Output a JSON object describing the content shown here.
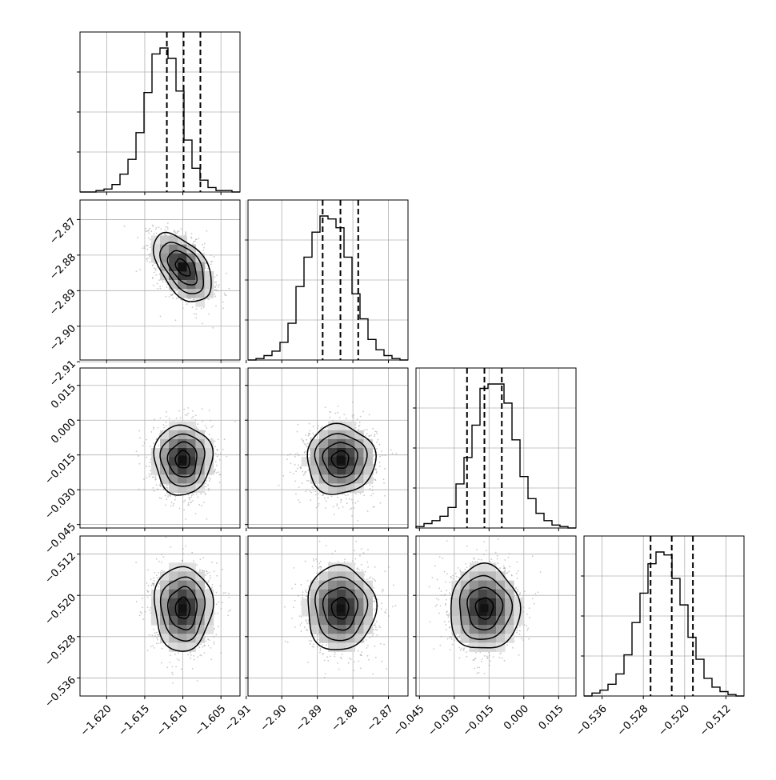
{
  "chart_data": {
    "type": "corner",
    "params": [
      {
        "range": [
          -1.6235,
          -1.6025
        ],
        "ticks": [
          -1.62,
          -1.615,
          -1.61,
          -1.605
        ],
        "tick_labels": [
          "−1.620",
          "−1.615",
          "−1.610",
          "−1.605"
        ],
        "mean": -1.61,
        "sd": 0.0019,
        "quantiles": [
          -1.6121,
          -1.6099,
          -1.6077
        ],
        "hist_counts": [
          0,
          0,
          1,
          2,
          5,
          12,
          22,
          40,
          67,
          93,
          97,
          90,
          68,
          35,
          16,
          8,
          3,
          1,
          1,
          0
        ]
      },
      {
        "range": [
          -2.9095,
          -2.8645
        ],
        "ticks": [
          -2.91,
          -2.9,
          -2.89,
          -2.88,
          -2.87
        ],
        "tick_labels": [
          "−2.91",
          "−2.90",
          "−2.89",
          "−2.88",
          "−2.87"
        ],
        "mean": -2.8835,
        "sd": 0.0048,
        "quantiles": [
          -2.8885,
          -2.8835,
          -2.8785
        ],
        "hist_counts": [
          0,
          1,
          3,
          6,
          12,
          25,
          50,
          70,
          87,
          98,
          96,
          90,
          70,
          45,
          28,
          14,
          7,
          3,
          1,
          0
        ]
      },
      {
        "range": [
          -0.0465,
          0.0225
        ],
        "ticks": [
          -0.045,
          -0.03,
          -0.015,
          0.0,
          0.015
        ],
        "tick_labels": [
          "−0.045",
          "−0.030",
          "−0.015",
          "0.000",
          "0.015"
        ],
        "mean": -0.017,
        "sd": 0.0075,
        "quantiles": [
          -0.0245,
          -0.017,
          -0.0095
        ],
        "hist_counts": [
          1,
          3,
          5,
          8,
          14,
          30,
          48,
          70,
          95,
          98,
          98,
          85,
          60,
          35,
          20,
          10,
          5,
          2,
          1,
          0
        ]
      },
      {
        "range": [
          -0.5395,
          -0.5085
        ],
        "ticks": [
          -0.536,
          -0.528,
          -0.52,
          -0.512
        ],
        "tick_labels": [
          "−0.536",
          "−0.528",
          "−0.520",
          "−0.512"
        ],
        "mean": -0.5225,
        "sd": 0.0041,
        "quantiles": [
          -0.5266,
          -0.5225,
          -0.5184
        ],
        "hist_counts": [
          0,
          2,
          4,
          8,
          15,
          28,
          50,
          70,
          90,
          98,
          96,
          80,
          62,
          40,
          25,
          12,
          6,
          3,
          1,
          0
        ]
      }
    ],
    "correlations": [
      [
        1,
        -0.5,
        0,
        0
      ],
      [
        -0.5,
        1,
        0,
        0
      ],
      [
        0,
        0,
        1,
        0
      ],
      [
        0,
        0,
        0,
        1
      ]
    ],
    "contour_levels_sigma": [
      0.5,
      1.0,
      1.5,
      2.0
    ],
    "grid": true,
    "colors": {
      "line": "#000000",
      "scatter": "#9a9a9a",
      "grid": "#b0b0b0"
    }
  }
}
